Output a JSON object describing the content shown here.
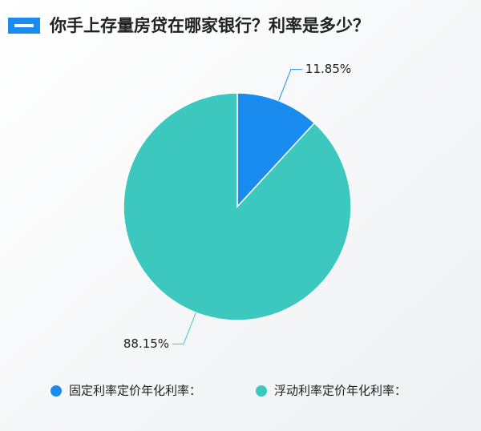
{
  "chart_data": {
    "type": "pie",
    "title": "你手上存量房贷在哪家银行？利率是多少？",
    "categories": [
      "固定利率定价年化利率：",
      "浮动利率定价年化利率："
    ],
    "values": [
      11.85,
      88.15
    ],
    "value_labels": [
      "11.85%",
      "88.15%"
    ],
    "colors": [
      "#1a8cf0",
      "#3dc8bf"
    ],
    "legend": "bottom"
  }
}
